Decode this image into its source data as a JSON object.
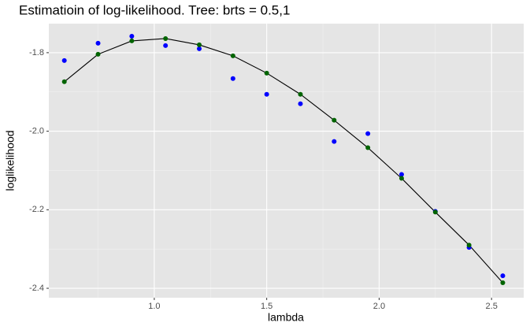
{
  "chart_data": {
    "type": "scatter",
    "title": "Estimatioin of log-likelihood. Tree: brts = 0.5,1",
    "x_label": "lambda",
    "y_label": "loglikelihood",
    "x": [
      0.6,
      0.75,
      0.9,
      1.05,
      1.2,
      1.35,
      1.5,
      1.65,
      1.8,
      1.95,
      2.1,
      2.25,
      2.4,
      2.55
    ],
    "series": [
      {
        "mark": "point",
        "color": "#0000ff",
        "values": [
          -1.82,
          -1.776,
          -1.758,
          -1.782,
          -1.79,
          -1.866,
          -1.906,
          -1.93,
          -2.026,
          -2.006,
          -2.11,
          -2.204,
          -2.296,
          -2.368
        ]
      },
      {
        "mark": "point",
        "color": "#006400",
        "values": [
          -1.874,
          -1.804,
          -1.77,
          -1.764,
          -1.78,
          -1.808,
          -1.852,
          -1.906,
          -1.972,
          -2.042,
          -2.12,
          -2.206,
          -2.29,
          -2.386
        ]
      },
      {
        "mark": "line",
        "color": "#000000",
        "values": [
          -1.874,
          -1.804,
          -1.77,
          -1.764,
          -1.78,
          -1.808,
          -1.852,
          -1.906,
          -1.972,
          -2.042,
          -2.12,
          -2.206,
          -2.29,
          -2.386
        ]
      }
    ],
    "xlim": [
      0.531,
      2.643
    ],
    "ylim": [
      -2.424,
      -1.726
    ],
    "xticks": [
      {
        "value": 1,
        "label": "1.0"
      },
      1.5,
      {
        "value": 2,
        "label": "2.0"
      },
      2.5
    ],
    "yticks": [
      -1.8,
      {
        "value": -2,
        "label": "-2.0"
      },
      -2.2,
      -2.4
    ],
    "xminorticks": [
      0.75,
      1.25,
      1.75,
      2.25
    ],
    "yminorticks": [
      -1.9,
      -2.1,
      -2.3
    ],
    "grid": true
  }
}
